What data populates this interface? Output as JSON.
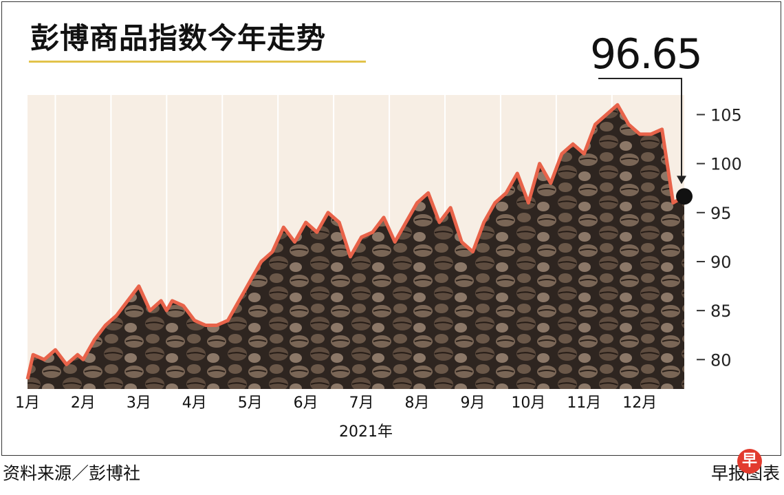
{
  "chart_data": {
    "type": "line",
    "title": "彭博商品指数今年走势",
    "xlabel": "2021年",
    "ylabel": "",
    "categories": [
      "1月",
      "2月",
      "3月",
      "4月",
      "5月",
      "6月",
      "7月",
      "8月",
      "9月",
      "10月",
      "11月",
      "12月"
    ],
    "yticks": [
      80,
      85,
      90,
      95,
      100,
      105
    ],
    "ylim": [
      77,
      107
    ],
    "grid": "vertical month separators",
    "series": [
      {
        "color": "#e8634a",
        "x": [
          0,
          0.1,
          0.3,
          0.5,
          0.7,
          0.9,
          1.0,
          1.2,
          1.4,
          1.6,
          1.8,
          2.0,
          2.2,
          2.4,
          2.5,
          2.6,
          2.8,
          3.0,
          3.2,
          3.4,
          3.6,
          3.8,
          3.9,
          4.0,
          4.2,
          4.4,
          4.6,
          4.8,
          5.0,
          5.2,
          5.4,
          5.6,
          5.8,
          6.0,
          6.2,
          6.4,
          6.6,
          6.8,
          7.0,
          7.2,
          7.4,
          7.6,
          7.8,
          8.0,
          8.2,
          8.4,
          8.6,
          8.8,
          9.0,
          9.2,
          9.4,
          9.6,
          9.8,
          10.0,
          10.2,
          10.4,
          10.6,
          10.8,
          11.0,
          11.2,
          11.4,
          11.6,
          11.8
        ],
        "values": [
          78,
          80.5,
          80,
          81,
          79.5,
          80.5,
          80,
          82,
          83.5,
          84.5,
          86,
          87.5,
          85,
          86,
          85,
          86,
          85.5,
          84,
          83.5,
          83.5,
          84,
          86,
          87,
          88,
          90,
          91,
          93.5,
          92,
          94,
          93,
          95,
          94,
          90.5,
          92.5,
          93,
          94.5,
          92,
          94,
          96,
          97,
          94,
          95.5,
          92,
          91,
          94,
          96,
          97,
          99,
          96,
          100,
          98,
          101,
          102,
          101,
          104,
          105,
          106,
          104,
          103,
          103,
          103.5,
          96,
          96.65
        ]
      }
    ],
    "annotations": [
      {
        "label": "96.65",
        "x": 11.8,
        "y": 96.65
      }
    ]
  },
  "footer": {
    "source": "资料来源／彭博社",
    "credit": "早报图表",
    "badge": "早"
  },
  "colors": {
    "line": "#e8634a",
    "underline": "#e2c34a",
    "background_band": "#f7eee4"
  }
}
